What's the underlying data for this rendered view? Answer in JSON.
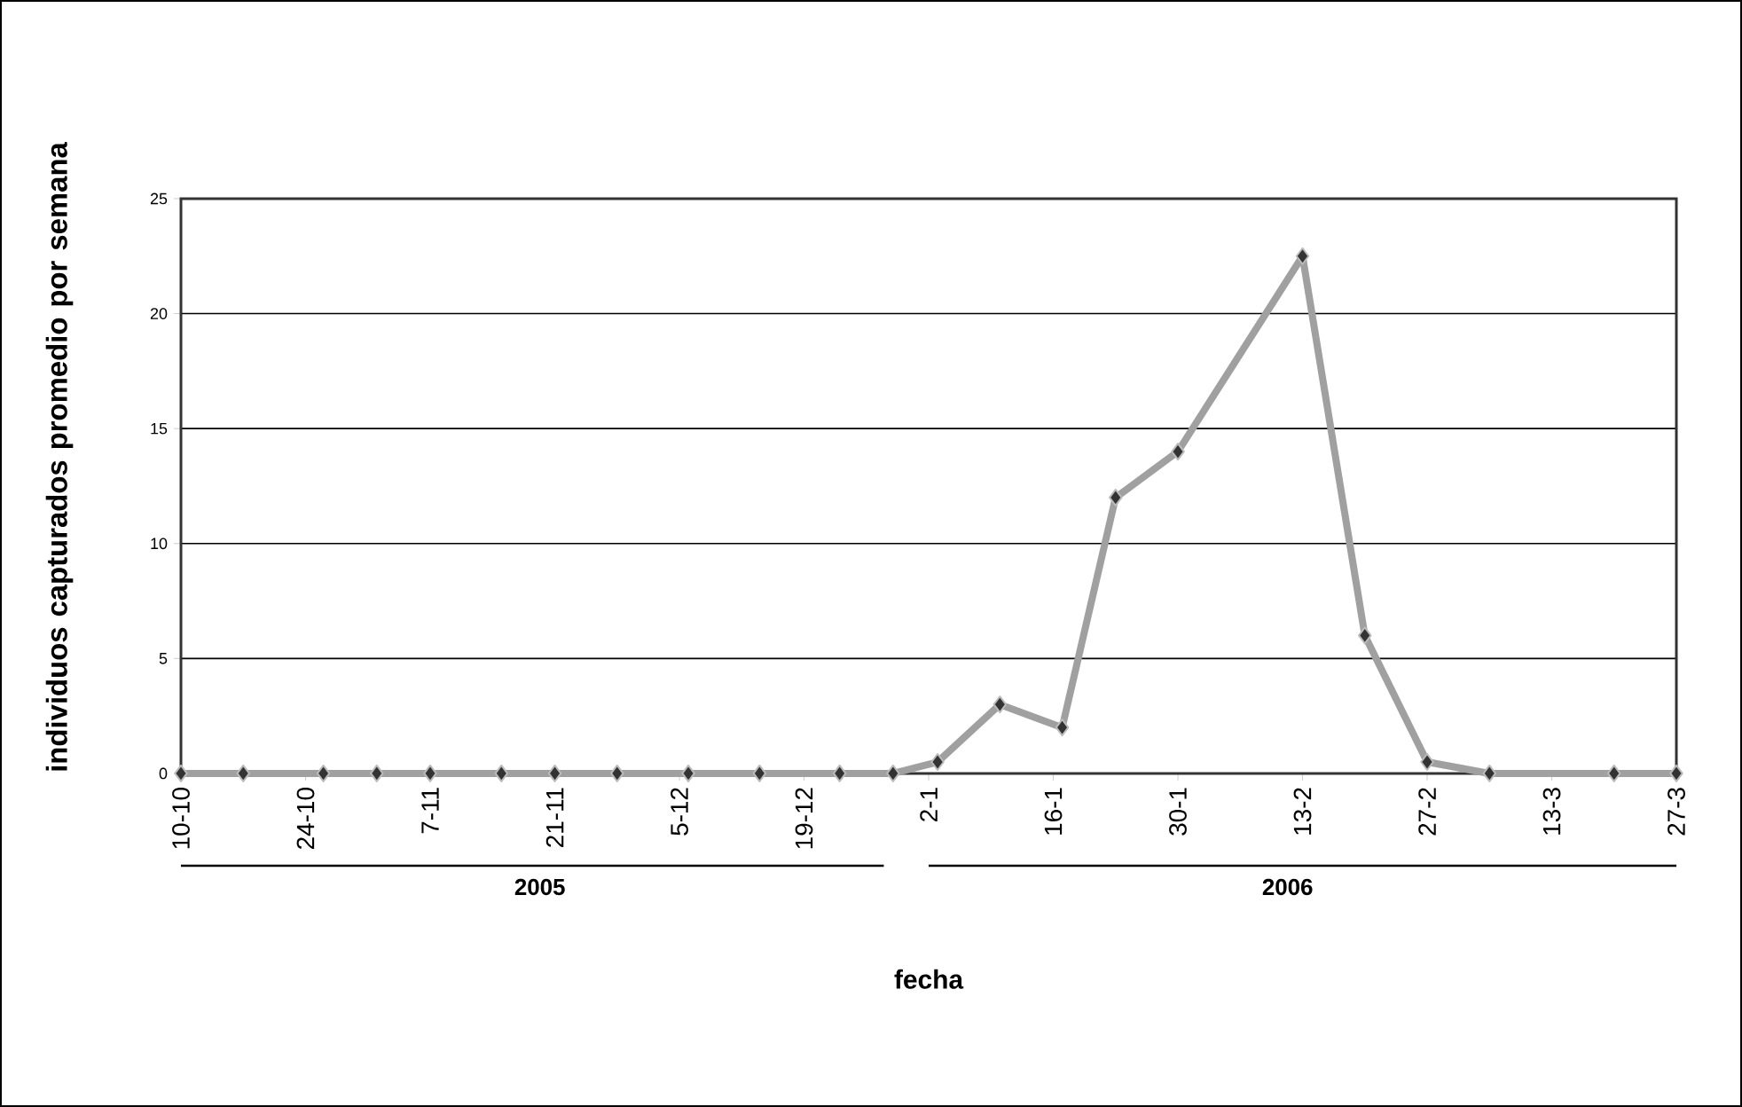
{
  "chart_data": {
    "type": "line",
    "xlabel": "fecha",
    "ylabel": "individuos capturados promedio por semana",
    "x": [
      "2005-10-10",
      "2005-10-17",
      "2005-10-26",
      "2005-11-01",
      "2005-11-07",
      "2005-11-15",
      "2005-11-21",
      "2005-11-28",
      "2005-12-06",
      "2005-12-14",
      "2005-12-23",
      "2005-12-29",
      "2006-01-03",
      "2006-01-10",
      "2006-01-17",
      "2006-01-23",
      "2006-01-30",
      "2006-02-13",
      "2006-02-20",
      "2006-02-27",
      "2006-03-06",
      "2006-03-20",
      "2006-03-27"
    ],
    "series": [
      {
        "color": "#a0a0a0",
        "values": [
          0,
          0,
          0,
          0,
          0,
          0,
          0,
          0,
          0,
          0,
          0,
          0,
          0.5,
          3,
          2,
          12,
          14,
          22.5,
          6,
          0.5,
          0,
          0,
          0
        ]
      }
    ],
    "xlim": [
      "2005-10-10",
      "2006-03-27"
    ],
    "xticks": [
      {
        "value": "2005-10-10",
        "label": "10-10"
      },
      {
        "value": "2005-10-24",
        "label": "24-10"
      },
      {
        "value": "2005-11-07",
        "label": "7-11"
      },
      {
        "value": "2005-11-21",
        "label": "21-11"
      },
      {
        "value": "2005-12-05",
        "label": "5-12"
      },
      {
        "value": "2005-12-19",
        "label": "19-12"
      },
      {
        "value": "2006-01-02",
        "label": "2-1"
      },
      {
        "value": "2006-01-16",
        "label": "16-1"
      },
      {
        "value": "2006-01-30",
        "label": "30-1"
      },
      {
        "value": "2006-02-13",
        "label": "13-2"
      },
      {
        "value": "2006-02-27",
        "label": "27-2"
      },
      {
        "value": "2006-03-13",
        "label": "13-3"
      },
      {
        "value": "2006-03-27",
        "label": "27-3"
      }
    ],
    "ylim": [
      0,
      25
    ],
    "yticks": [
      0,
      5,
      10,
      15,
      20,
      25
    ],
    "grid": "y",
    "marker": "diamond",
    "line_style": "solid",
    "annotations": [
      "2005",
      "2006"
    ]
  }
}
